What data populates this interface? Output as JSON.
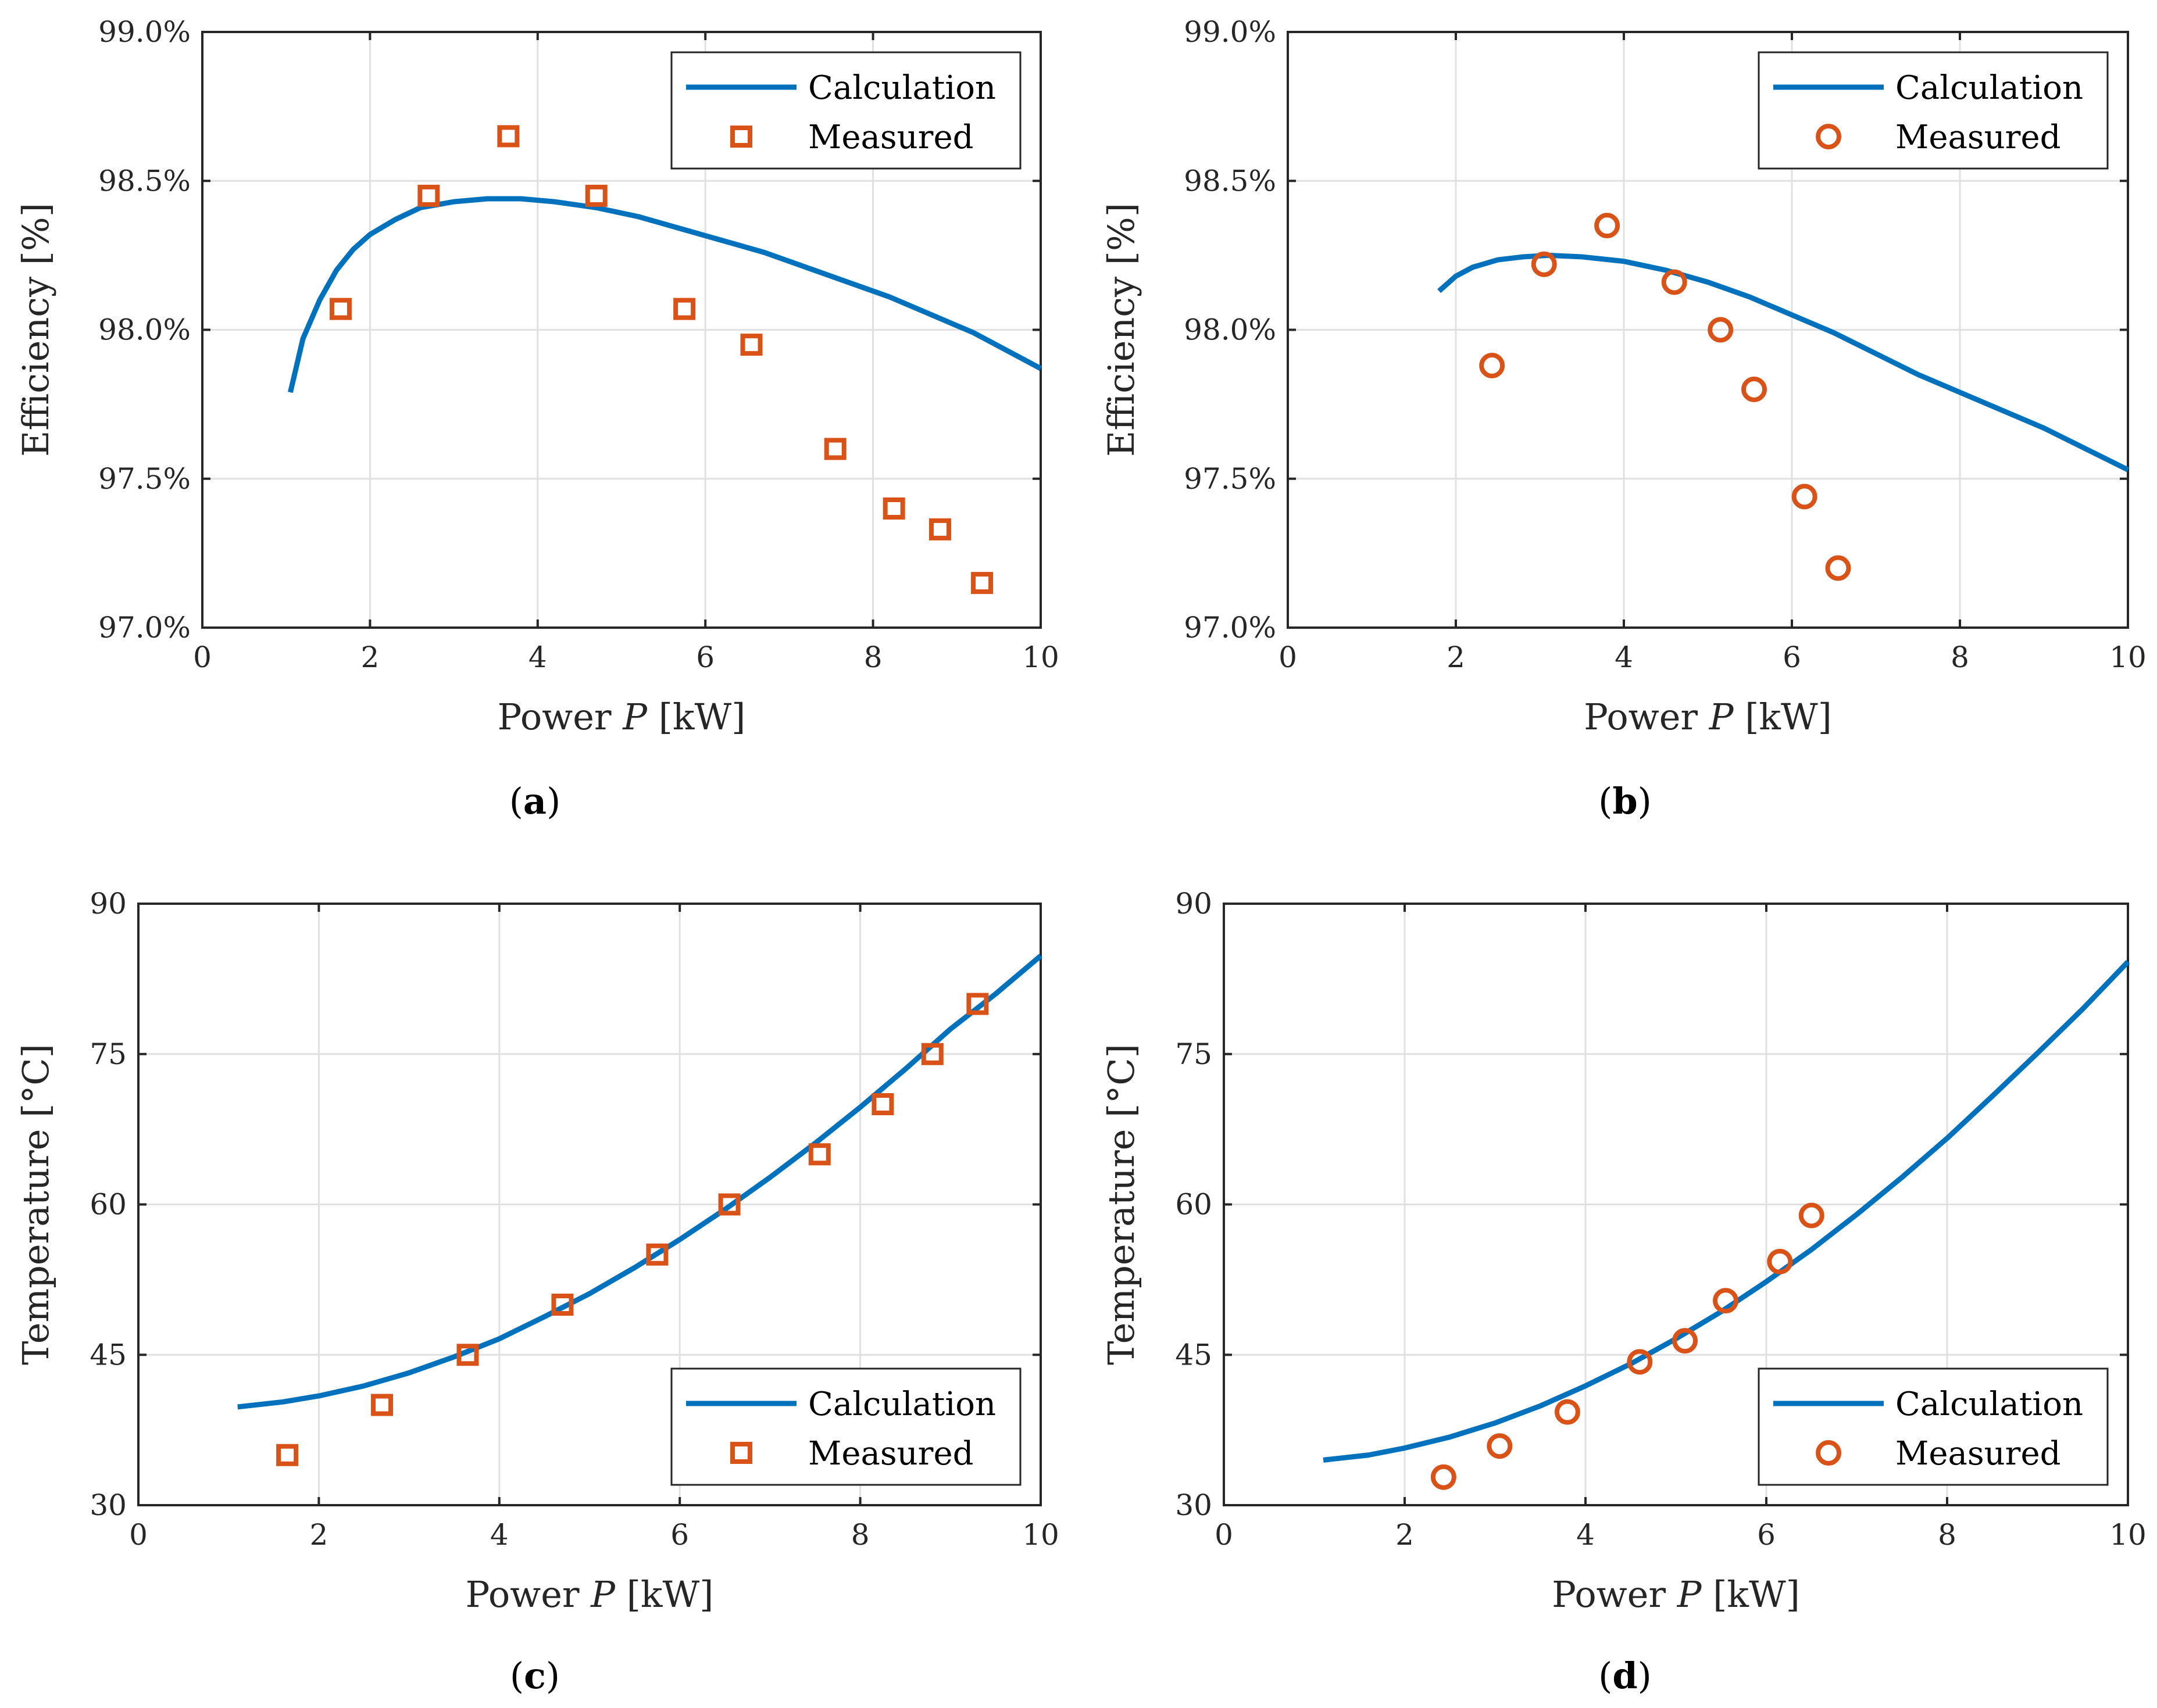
{
  "chart_data": [
    {
      "id": "a",
      "type": "line+scatter",
      "caption_label": "a",
      "xlabel_prefix": "Power ",
      "xlabel_var": "P",
      "xlabel_unit": " [kW]",
      "ylabel": "Efficiency [%]",
      "xlim": [
        0,
        10
      ],
      "ylim": [
        97.0,
        99.0
      ],
      "xticks": [
        0,
        2,
        4,
        6,
        8,
        10
      ],
      "yticks": [
        97.0,
        97.5,
        98.0,
        98.5,
        99.0
      ],
      "ytick_labels": [
        "97.0%",
        "97.5%",
        "98.0%",
        "98.5%",
        "99.0%"
      ],
      "grid": true,
      "legend_position": "top-right",
      "marker": "square",
      "line_color": "#0072bd",
      "marker_color": "#d95319",
      "series": [
        {
          "name": "Calculation",
          "kind": "line",
          "x": [
            1.05,
            1.2,
            1.4,
            1.6,
            1.8,
            2.0,
            2.3,
            2.6,
            3.0,
            3.4,
            3.8,
            4.2,
            4.7,
            5.2,
            5.7,
            6.2,
            6.7,
            7.2,
            7.7,
            8.2,
            8.7,
            9.2,
            9.6,
            10.0
          ],
          "y": [
            97.79,
            97.97,
            98.1,
            98.2,
            98.27,
            98.32,
            98.37,
            98.41,
            98.43,
            98.44,
            98.44,
            98.43,
            98.41,
            98.38,
            98.34,
            98.3,
            98.26,
            98.21,
            98.16,
            98.11,
            98.05,
            97.99,
            97.93,
            97.87
          ]
        },
        {
          "name": "Measured",
          "kind": "scatter",
          "x": [
            1.65,
            2.7,
            3.65,
            4.7,
            5.75,
            6.55,
            7.55,
            8.25,
            8.8,
            9.3
          ],
          "y": [
            98.07,
            98.45,
            98.65,
            98.45,
            98.07,
            97.95,
            97.6,
            97.4,
            97.33,
            97.15
          ]
        }
      ]
    },
    {
      "id": "b",
      "type": "line+scatter",
      "caption_label": "b",
      "xlabel_prefix": "Power ",
      "xlabel_var": "P",
      "xlabel_unit": " [kW]",
      "ylabel": "Efficiency [%]",
      "xlim": [
        0,
        10
      ],
      "ylim": [
        97.0,
        99.0
      ],
      "xticks": [
        0,
        2,
        4,
        6,
        8,
        10
      ],
      "yticks": [
        97.0,
        97.5,
        98.0,
        98.5,
        99.0
      ],
      "ytick_labels": [
        "97.0%",
        "97.5%",
        "98.0%",
        "98.5%",
        "99.0%"
      ],
      "grid": true,
      "legend_position": "top-right",
      "marker": "circle",
      "line_color": "#0072bd",
      "marker_color": "#d95319",
      "series": [
        {
          "name": "Calculation",
          "kind": "line",
          "x": [
            1.8,
            2.0,
            2.2,
            2.5,
            2.8,
            3.1,
            3.5,
            4.0,
            4.5,
            5.0,
            5.5,
            6.0,
            6.5,
            7.0,
            7.5,
            8.0,
            8.5,
            9.0,
            9.5,
            10.0
          ],
          "y": [
            98.13,
            98.18,
            98.21,
            98.235,
            98.245,
            98.25,
            98.245,
            98.23,
            98.2,
            98.16,
            98.11,
            98.05,
            97.99,
            97.92,
            97.85,
            97.79,
            97.73,
            97.67,
            97.6,
            97.53
          ]
        },
        {
          "name": "Measured",
          "kind": "scatter",
          "x": [
            2.43,
            3.05,
            3.8,
            4.6,
            5.15,
            5.55,
            6.15,
            6.55
          ],
          "y": [
            97.88,
            98.22,
            98.35,
            98.16,
            98.0,
            97.8,
            97.44,
            97.2
          ]
        }
      ]
    },
    {
      "id": "c",
      "type": "line+scatter",
      "caption_label": "c",
      "xlabel_prefix": "Power ",
      "xlabel_var": "P",
      "xlabel_unit": " [kW]",
      "ylabel": "Temperature [°C]",
      "xlim": [
        0,
        10
      ],
      "ylim": [
        30,
        90
      ],
      "xticks": [
        0,
        2,
        4,
        6,
        8,
        10
      ],
      "yticks": [
        30,
        45,
        60,
        75,
        90
      ],
      "ytick_labels": [
        "30",
        "45",
        "60",
        "75",
        "90"
      ],
      "grid": true,
      "legend_position": "bottom-right",
      "marker": "square",
      "line_color": "#0072bd",
      "marker_color": "#d95319",
      "series": [
        {
          "name": "Calculation",
          "kind": "line",
          "x": [
            1.1,
            1.6,
            2.0,
            2.5,
            3.0,
            3.5,
            4.0,
            4.5,
            5.0,
            5.5,
            6.0,
            6.5,
            7.0,
            7.5,
            8.0,
            8.5,
            9.0,
            9.5,
            10.0
          ],
          "y": [
            39.8,
            40.3,
            40.9,
            41.9,
            43.2,
            44.8,
            46.6,
            48.8,
            51.1,
            53.7,
            56.5,
            59.5,
            62.7,
            66.1,
            69.7,
            73.5,
            77.5,
            81.0,
            84.8
          ]
        },
        {
          "name": "Measured",
          "kind": "scatter",
          "x": [
            1.65,
            2.7,
            3.65,
            4.7,
            5.75,
            6.55,
            7.55,
            8.25,
            8.8,
            9.3
          ],
          "y": [
            35,
            40,
            45,
            50,
            55,
            60,
            65,
            70,
            75,
            80
          ]
        }
      ]
    },
    {
      "id": "d",
      "type": "line+scatter",
      "caption_label": "d",
      "xlabel_prefix": "Power ",
      "xlabel_var": "P",
      "xlabel_unit": " [kW]",
      "ylabel": "Temperature [°C]",
      "xlim": [
        0,
        10
      ],
      "ylim": [
        30,
        90
      ],
      "xticks": [
        0,
        2,
        4,
        6,
        8,
        10
      ],
      "yticks": [
        30,
        45,
        60,
        75,
        90
      ],
      "ytick_labels": [
        "30",
        "45",
        "60",
        "75",
        "90"
      ],
      "grid": true,
      "legend_position": "bottom-right",
      "marker": "circle",
      "line_color": "#0072bd",
      "marker_color": "#d95319",
      "series": [
        {
          "name": "Calculation",
          "kind": "line",
          "x": [
            1.1,
            1.6,
            2.0,
            2.5,
            3.0,
            3.5,
            4.0,
            4.5,
            5.0,
            5.5,
            6.0,
            6.5,
            7.0,
            7.5,
            8.0,
            8.5,
            9.0,
            9.5,
            10.0
          ],
          "y": [
            34.5,
            35.0,
            35.7,
            36.8,
            38.2,
            39.9,
            41.9,
            44.1,
            46.6,
            49.3,
            52.3,
            55.5,
            59.0,
            62.7,
            66.6,
            70.8,
            75.1,
            79.5,
            84.2
          ]
        },
        {
          "name": "Measured",
          "kind": "scatter",
          "x": [
            2.43,
            3.05,
            3.8,
            4.6,
            5.1,
            5.55,
            6.15,
            6.5
          ],
          "y": [
            32.8,
            35.9,
            39.3,
            44.3,
            46.4,
            50.4,
            54.3,
            58.9
          ]
        }
      ]
    }
  ]
}
